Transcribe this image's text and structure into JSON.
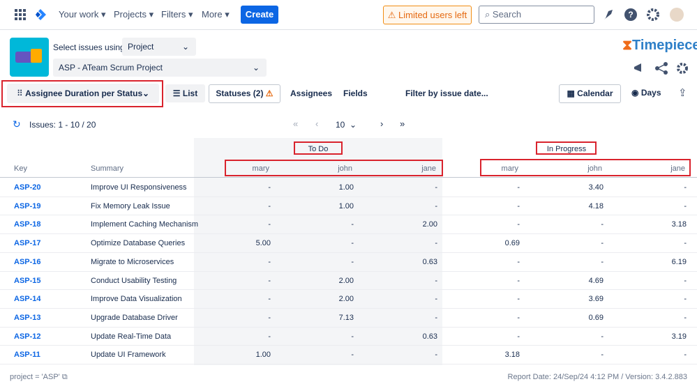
{
  "nav": {
    "items": [
      "Your work",
      "Projects",
      "Filters",
      "More"
    ],
    "create": "Create",
    "warning": "Limited users left",
    "search": "Search"
  },
  "toolbar": {
    "select_label": "Select issues using",
    "select_value": "Project",
    "project": "ASP - ATeam Scrum Project",
    "brand": "Timepiece"
  },
  "controls": {
    "view": "Assignee Duration per Status",
    "list": "List",
    "statuses": "Statuses (2)",
    "assignees": "Assignees",
    "fields": "Fields",
    "filter": "Filter by issue date...",
    "calendar": "Calendar",
    "days": "Days"
  },
  "pagination": {
    "issues": "Issues: 1 - 10 / 20",
    "page_size": "10"
  },
  "table": {
    "groups": [
      "To Do",
      "In Progress"
    ],
    "key_header": "Key",
    "summary_header": "Summary",
    "assignees": [
      "mary",
      "john",
      "jane",
      "mary",
      "john",
      "jane"
    ],
    "rows": [
      [
        "ASP-20",
        "Improve UI Responsiveness",
        "-",
        "1.00",
        "-",
        "-",
        "3.40",
        "-"
      ],
      [
        "ASP-19",
        "Fix Memory Leak Issue",
        "-",
        "1.00",
        "-",
        "-",
        "4.18",
        "-"
      ],
      [
        "ASP-18",
        "Implement Caching Mechanism",
        "-",
        "-",
        "2.00",
        "-",
        "-",
        "3.18"
      ],
      [
        "ASP-17",
        "Optimize Database Queries",
        "5.00",
        "-",
        "-",
        "0.69",
        "-",
        "-"
      ],
      [
        "ASP-16",
        "Migrate to Microservices",
        "-",
        "-",
        "0.63",
        "-",
        "-",
        "6.19"
      ],
      [
        "ASP-15",
        "Conduct Usability Testing",
        "-",
        "2.00",
        "-",
        "-",
        "4.69",
        "-"
      ],
      [
        "ASP-14",
        "Improve Data Visualization",
        "-",
        "2.00",
        "-",
        "-",
        "3.69",
        "-"
      ],
      [
        "ASP-13",
        "Upgrade Database Driver",
        "-",
        "7.13",
        "-",
        "-",
        "0.69",
        "-"
      ],
      [
        "ASP-12",
        "Update Real-Time Data",
        "-",
        "-",
        "0.63",
        "-",
        "-",
        "3.19"
      ],
      [
        "ASP-11",
        "Update UI Framework",
        "1.00",
        "-",
        "-",
        "3.18",
        "-",
        "-"
      ]
    ]
  },
  "footer": {
    "query": "project = 'ASP'",
    "report": "Report Date: 24/Sep/24 4:12 PM / Version: 3.4.2.883"
  }
}
